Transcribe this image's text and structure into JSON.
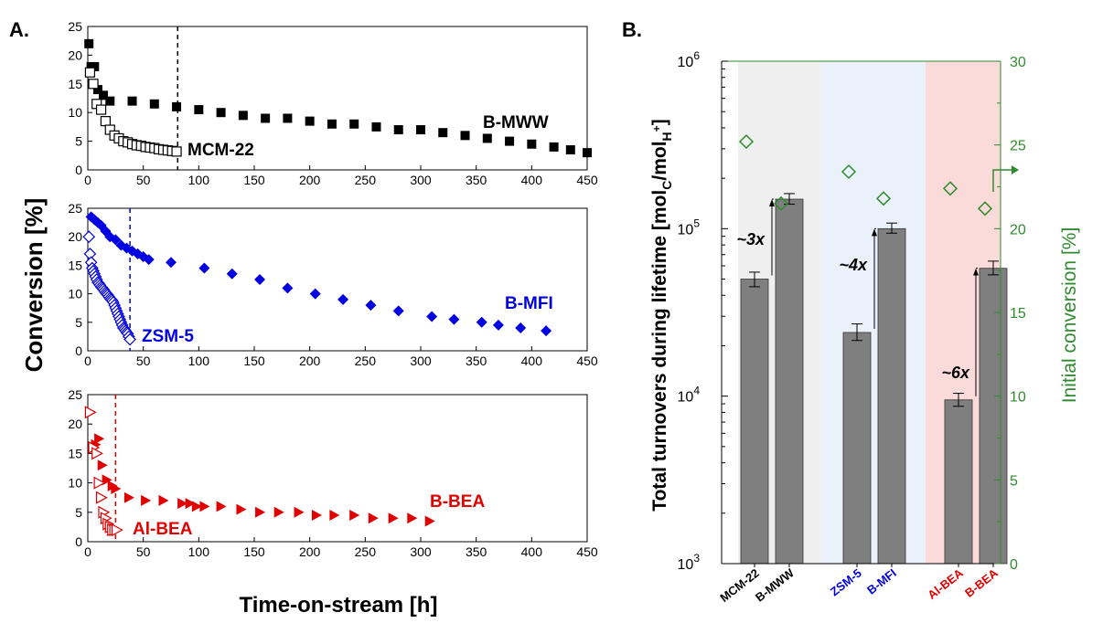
{
  "chart_data": [
    {
      "type": "scatter",
      "panel_label": "A.",
      "ylabel": "Conversion [%]",
      "xlabel": "Time-on-stream [h]",
      "xlim": [
        0,
        450
      ],
      "ylim": [
        0,
        25
      ],
      "xticks": [
        0,
        50,
        100,
        150,
        200,
        250,
        300,
        350,
        400,
        450
      ],
      "yticks": [
        0,
        5,
        10,
        15,
        20,
        25
      ],
      "panels": [
        {
          "id": "mww",
          "color": "#000000",
          "dashed_x": 81,
          "series": [
            {
              "name": "B-MWW",
              "marker": "square-filled",
              "x": [
                1,
                3,
                6,
                9,
                14,
                20,
                40,
                60,
                80,
                100,
                120,
                140,
                160,
                180,
                200,
                220,
                240,
                260,
                280,
                300,
                320,
                340,
                360,
                380,
                400,
                420,
                435,
                450
              ],
              "y": [
                22,
                18,
                18,
                14,
                13,
                12,
                12,
                11.5,
                11,
                10.5,
                10,
                9.5,
                9,
                9,
                8.5,
                8,
                8,
                7.5,
                7,
                7,
                6.5,
                6,
                5.5,
                5,
                4.5,
                4,
                3.5,
                3
              ]
            },
            {
              "name": "MCM-22",
              "marker": "square-open",
              "x": [
                2,
                5,
                8,
                12,
                16,
                20,
                24,
                28,
                32,
                36,
                40,
                44,
                48,
                52,
                56,
                60,
                64,
                68,
                72,
                76,
                80
              ],
              "y": [
                17,
                15,
                11.5,
                10.5,
                8.5,
                7,
                6,
                5.5,
                5,
                4.8,
                4.5,
                4.3,
                4.2,
                4,
                3.9,
                3.8,
                3.6,
                3.5,
                3.4,
                3.3,
                3.2
              ]
            }
          ]
        },
        {
          "id": "mfi",
          "color": "#0000e0",
          "dashed_x": 38,
          "series": [
            {
              "name": "B-MFI",
              "marker": "diamond-filled",
              "x": [
                3,
                6,
                9,
                12,
                16,
                20,
                25,
                30,
                35,
                40,
                45,
                50,
                55,
                75,
                105,
                130,
                155,
                180,
                205,
                230,
                255,
                280,
                310,
                330,
                355,
                370,
                390,
                413
              ],
              "y": [
                23.5,
                23,
                22.5,
                22,
                21,
                20,
                19.5,
                18.5,
                18,
                17.5,
                17,
                16.5,
                16,
                15.5,
                14.5,
                13.5,
                12.5,
                11,
                10,
                9,
                8,
                7,
                6,
                5.5,
                5,
                4.5,
                4,
                3.5
              ]
            },
            {
              "name": "ZSM-5",
              "marker": "diamond-open",
              "x": [
                1,
                2,
                3,
                4,
                5,
                6,
                7,
                8,
                9,
                10,
                11,
                12,
                13,
                14,
                15,
                16,
                17,
                18,
                19,
                20,
                21,
                22,
                23,
                24,
                25,
                26,
                27,
                28,
                29,
                30,
                31,
                32,
                33,
                34,
                35,
                36,
                37,
                38
              ],
              "y": [
                20,
                17,
                15.5,
                14.5,
                14,
                13.5,
                13,
                12.5,
                12,
                11.8,
                11.5,
                11.2,
                11,
                10.8,
                10.5,
                10.2,
                10,
                9.8,
                9.5,
                9.2,
                9,
                8.8,
                8.5,
                8,
                7.5,
                7,
                6.5,
                6,
                5.5,
                5,
                4.5,
                4,
                3.8,
                3.5,
                3.2,
                3,
                2.5,
                2
              ]
            }
          ]
        },
        {
          "id": "bea",
          "color": "#e00000",
          "dashed_x": 25,
          "series": [
            {
              "name": "B-BEA",
              "marker": "triangle-right-filled",
              "x": [
                7,
                10,
                13,
                17,
                22,
                25,
                37,
                52,
                68,
                85,
                92,
                98,
                105,
                120,
                138,
                155,
                172,
                190,
                206,
                222,
                240,
                257,
                275,
                292,
                308
              ],
              "y": [
                16.5,
                17.5,
                13,
                10.5,
                9.5,
                9,
                7.5,
                7,
                7,
                6.5,
                6.5,
                6,
                6,
                6,
                5.5,
                5,
                5,
                5,
                4.5,
                4.5,
                4.5,
                4,
                4,
                4,
                3.5
              ]
            },
            {
              "name": "Al-BEA",
              "marker": "triangle-right-open",
              "x": [
                2,
                5,
                8,
                10,
                12,
                14,
                16,
                18,
                20,
                22,
                24,
                26
              ],
              "y": [
                22,
                16,
                15,
                10,
                7.5,
                5,
                4,
                3,
                2.5,
                2,
                2,
                2
              ]
            }
          ]
        }
      ]
    },
    {
      "type": "bar",
      "panel_label": "B.",
      "ylabel_left": "Total turnovers during lifetime [mol",
      "ylabel_left_sub1": "C",
      "ylabel_left_mid": "/mol",
      "ylabel_left_sub2": "H",
      "ylabel_left_sup": "+",
      "ylabel_left_end": "]",
      "ylabel_right": "Initial conversion [%]",
      "left_scale": "log",
      "left_ylim": [
        1000,
        1000000
      ],
      "left_tick_base": "10",
      "left_tick_exponents": [
        "3",
        "4",
        "5",
        "6"
      ],
      "right_ylim": [
        0,
        30
      ],
      "right_ticks": [
        "0",
        "5",
        "10",
        "15",
        "20",
        "25",
        "30"
      ],
      "categories": [
        "MCM-22",
        "B-MWW",
        "ZSM-5",
        "B-MFI",
        "Al-BEA",
        "B-BEA"
      ],
      "category_colors": [
        "#000000",
        "#000000",
        "#0000e0",
        "#0000e0",
        "#e00000",
        "#e00000"
      ],
      "bar_values": [
        50000,
        150000,
        24000,
        100000,
        9500,
        58000
      ],
      "bar_error_low": [
        45000,
        140000,
        21500,
        94000,
        8700,
        53000
      ],
      "bar_error_high": [
        55000,
        162000,
        27000,
        108000,
        10400,
        64000
      ],
      "initial_conversion": [
        25.2,
        21.5,
        23.4,
        21.8,
        22.4,
        21.2
      ],
      "groups": [
        {
          "background": "#efefef"
        },
        {
          "background": "#eaf1fb"
        },
        {
          "background": "#fbdada"
        }
      ],
      "ratio_annotations": [
        "~3x",
        "~4x",
        "~6x"
      ],
      "bar_color": "#7f7f7f",
      "right_axis_color": "#2e8b2e"
    }
  ]
}
